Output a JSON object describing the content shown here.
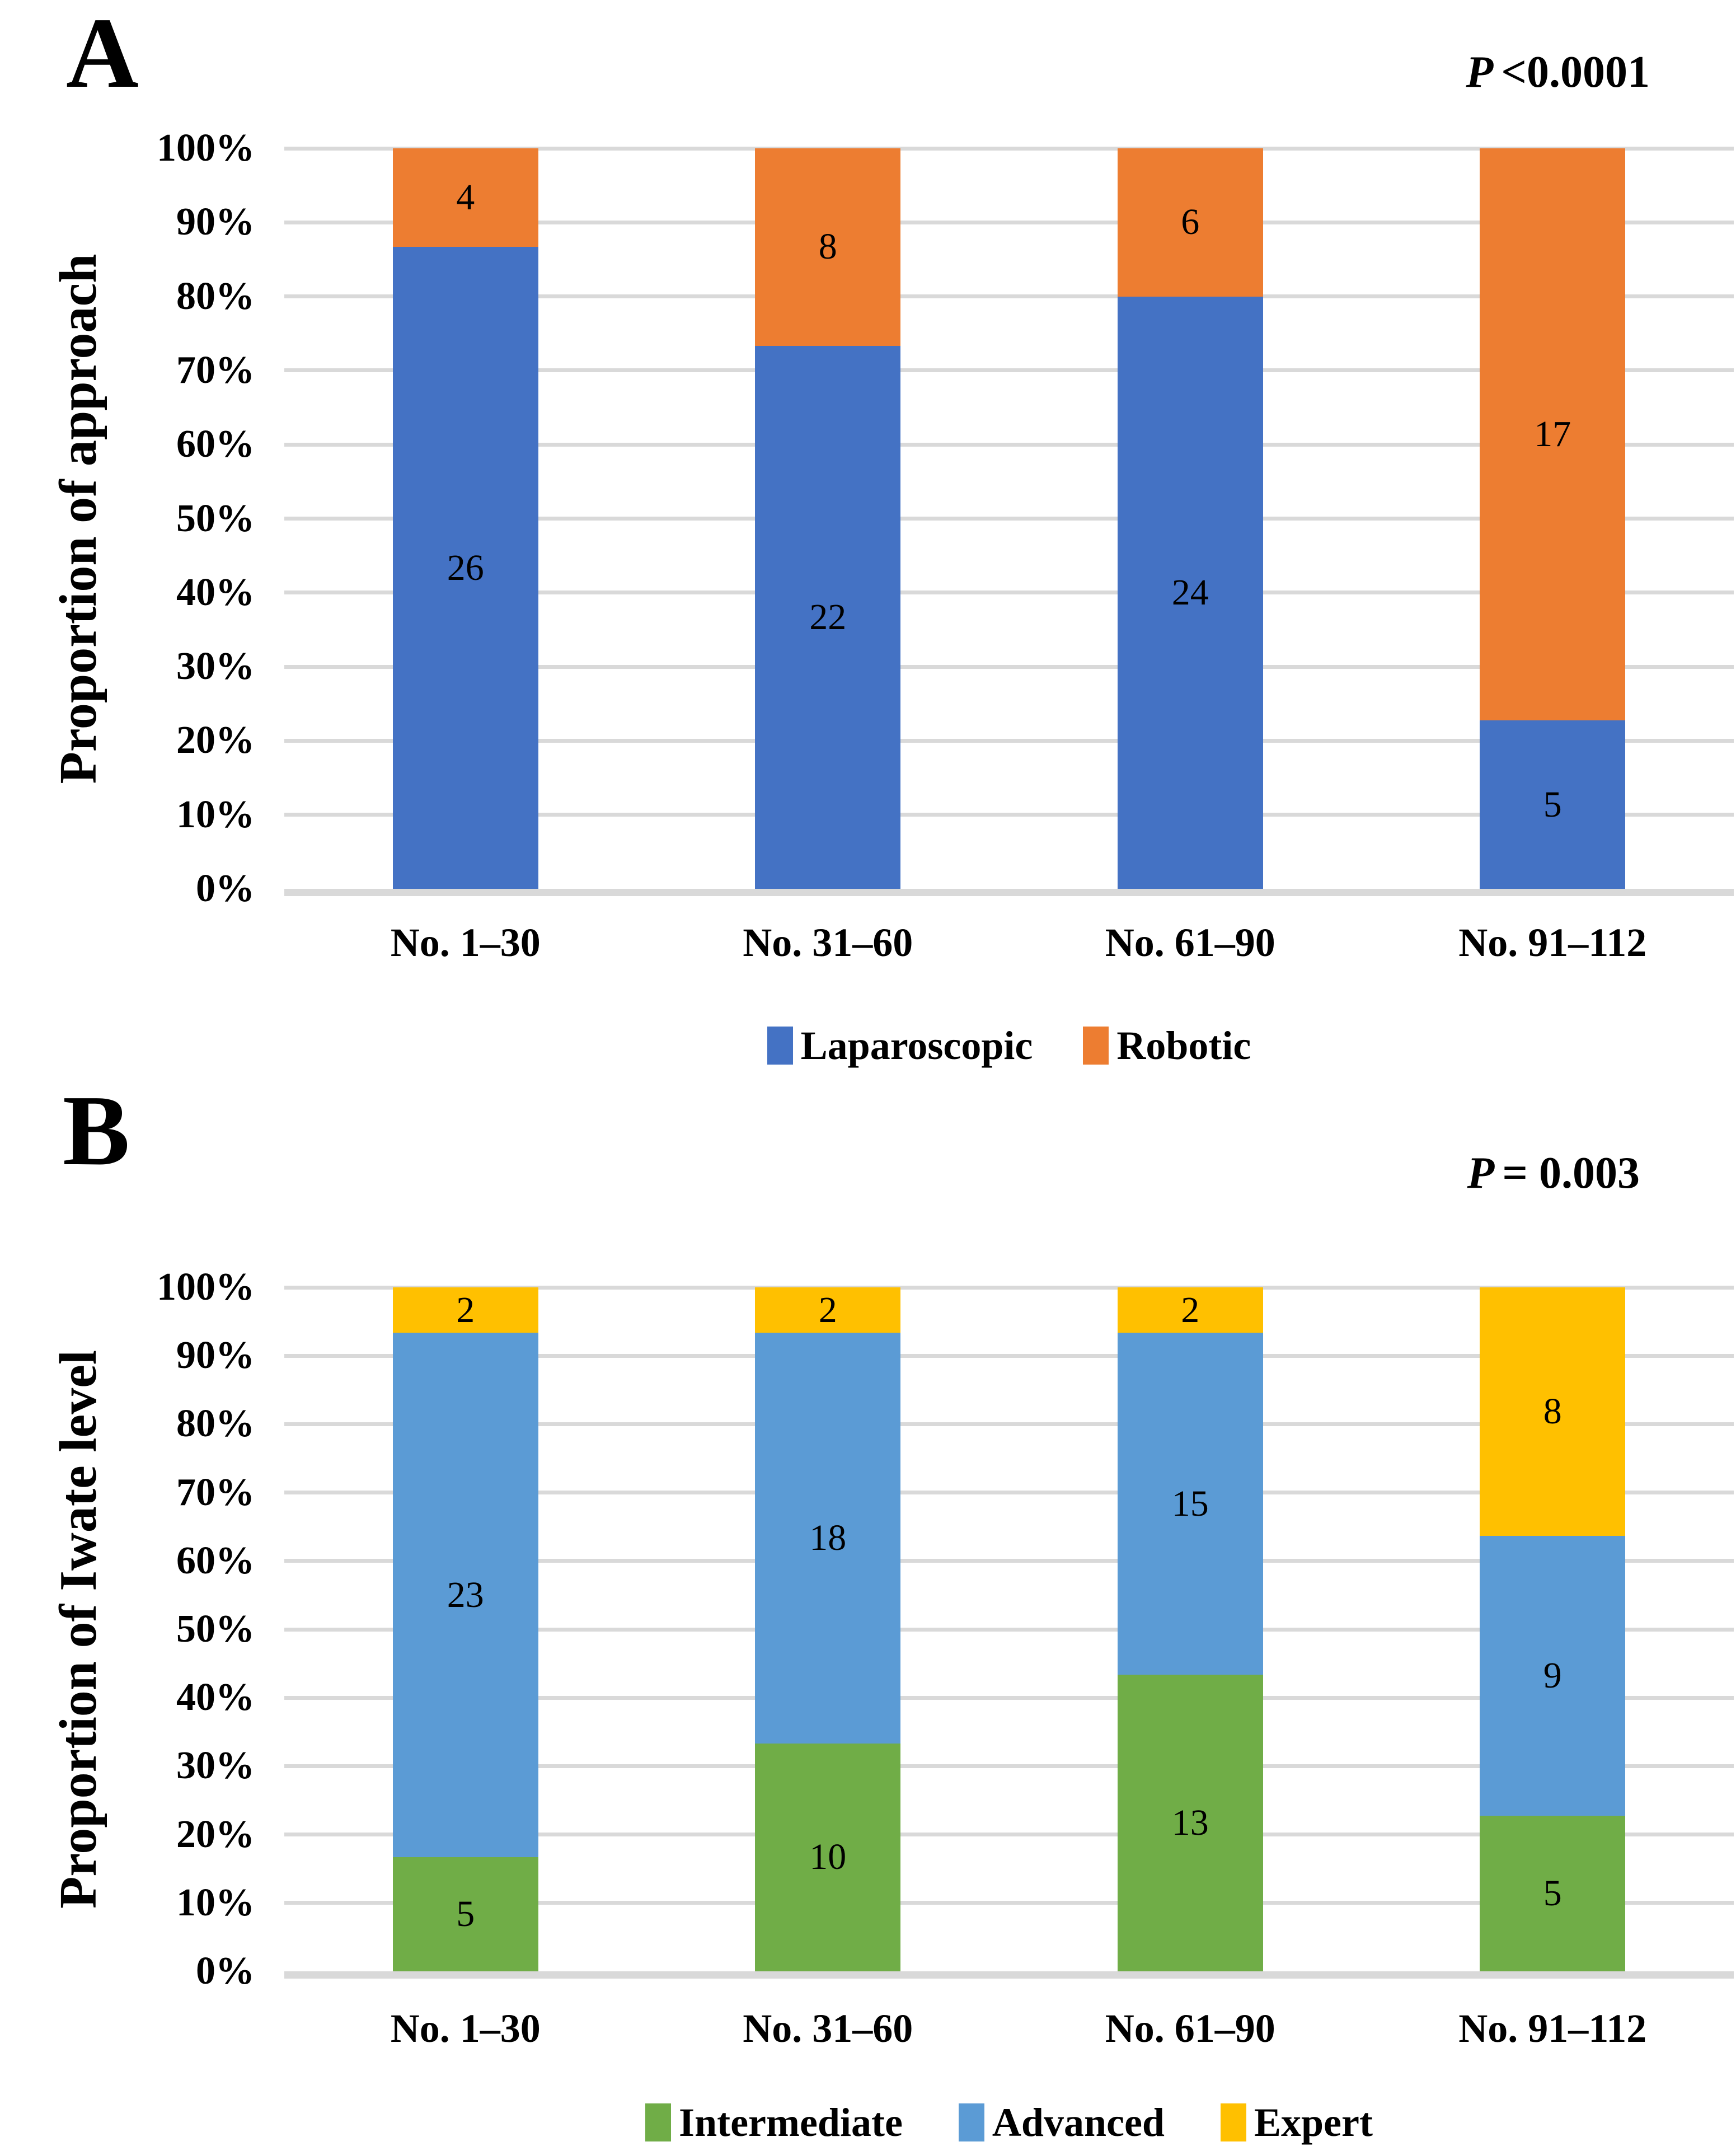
{
  "figure": {
    "panels": [
      {
        "panel_letter": "A",
        "p_value": {
          "label": "P",
          "value": "<0.0001"
        },
        "ylabel": "Proportion of approach"
      },
      {
        "panel_letter": "B",
        "p_value": {
          "label": "P",
          "value": "= 0.003"
        },
        "ylabel": "Proportion of Iwate level"
      }
    ]
  },
  "chart_data": [
    {
      "type": "bar",
      "subtype": "stacked-100-percent",
      "panel": "A",
      "title": "",
      "xlabel": "",
      "ylabel": "Proportion of approach",
      "p_value_text": "P <0.0001",
      "categories": [
        "No. 1–30",
        "No. 31–60",
        "No. 61–90",
        "No. 91–112"
      ],
      "series": [
        {
          "name": "Laparoscopic",
          "color": "#4472C4",
          "values": [
            26,
            22,
            24,
            5
          ]
        },
        {
          "name": "Robotic",
          "color": "#ED7D31",
          "values": [
            4,
            8,
            6,
            17
          ]
        }
      ],
      "column_totals": [
        30,
        30,
        30,
        22
      ],
      "y_ticks": [
        "0%",
        "10%",
        "20%",
        "30%",
        "40%",
        "50%",
        "60%",
        "70%",
        "80%",
        "90%",
        "100%"
      ],
      "ylim": [
        0,
        100
      ],
      "grid": "horizontal",
      "gridline_color": "#D9D9D9",
      "legend_position": "bottom"
    },
    {
      "type": "bar",
      "subtype": "stacked-100-percent",
      "panel": "B",
      "title": "",
      "xlabel": "",
      "ylabel": "Proportion of Iwate level",
      "p_value_text": "P = 0.003",
      "categories": [
        "No. 1–30",
        "No. 31–60",
        "No. 61–90",
        "No. 91–112"
      ],
      "series": [
        {
          "name": "Intermediate",
          "color": "#70AD47",
          "values": [
            5,
            10,
            13,
            5
          ]
        },
        {
          "name": "Advanced",
          "color": "#5B9BD5",
          "values": [
            23,
            18,
            15,
            9
          ]
        },
        {
          "name": "Expert",
          "color": "#FFC000",
          "values": [
            2,
            2,
            2,
            8
          ]
        }
      ],
      "column_totals": [
        30,
        30,
        30,
        22
      ],
      "y_ticks": [
        "0%",
        "10%",
        "20%",
        "30%",
        "40%",
        "50%",
        "60%",
        "70%",
        "80%",
        "90%",
        "100%"
      ],
      "ylim": [
        0,
        100
      ],
      "grid": "horizontal",
      "gridline_color": "#D9D9D9",
      "legend_position": "bottom"
    }
  ]
}
